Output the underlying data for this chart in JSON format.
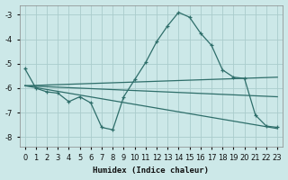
{
  "xlabel": "Humidex (Indice chaleur)",
  "background_color": "#cce8e8",
  "grid_color": "#aacccc",
  "line_color": "#2e6e6a",
  "xlim": [
    -0.5,
    23.5
  ],
  "ylim": [
    -8.4,
    -2.6
  ],
  "yticks": [
    -8,
    -7,
    -6,
    -5,
    -4,
    -3
  ],
  "xticks": [
    0,
    1,
    2,
    3,
    4,
    5,
    6,
    7,
    8,
    9,
    10,
    11,
    12,
    13,
    14,
    15,
    16,
    17,
    18,
    19,
    20,
    21,
    22,
    23
  ],
  "series": [
    {
      "x": [
        0,
        1,
        2,
        3,
        4,
        5,
        6,
        7,
        8,
        9,
        10,
        11,
        12,
        13,
        14,
        15,
        16,
        17,
        18,
        19,
        20,
        21,
        22,
        23
      ],
      "y": [
        -5.2,
        -6.0,
        -6.15,
        -6.2,
        -6.55,
        -6.35,
        -6.6,
        -7.6,
        -7.7,
        -6.35,
        -5.65,
        -4.95,
        -4.1,
        -3.45,
        -2.9,
        -3.1,
        -3.75,
        -4.25,
        -5.25,
        -5.55,
        -5.6,
        -7.1,
        -7.55,
        -7.6
      ],
      "marker": "+"
    },
    {
      "x": [
        0,
        23
      ],
      "y": [
        -5.9,
        -5.55
      ],
      "marker": null
    },
    {
      "x": [
        0,
        23
      ],
      "y": [
        -5.9,
        -6.35
      ],
      "marker": null
    },
    {
      "x": [
        0,
        23
      ],
      "y": [
        -5.9,
        -7.65
      ],
      "marker": null
    }
  ]
}
